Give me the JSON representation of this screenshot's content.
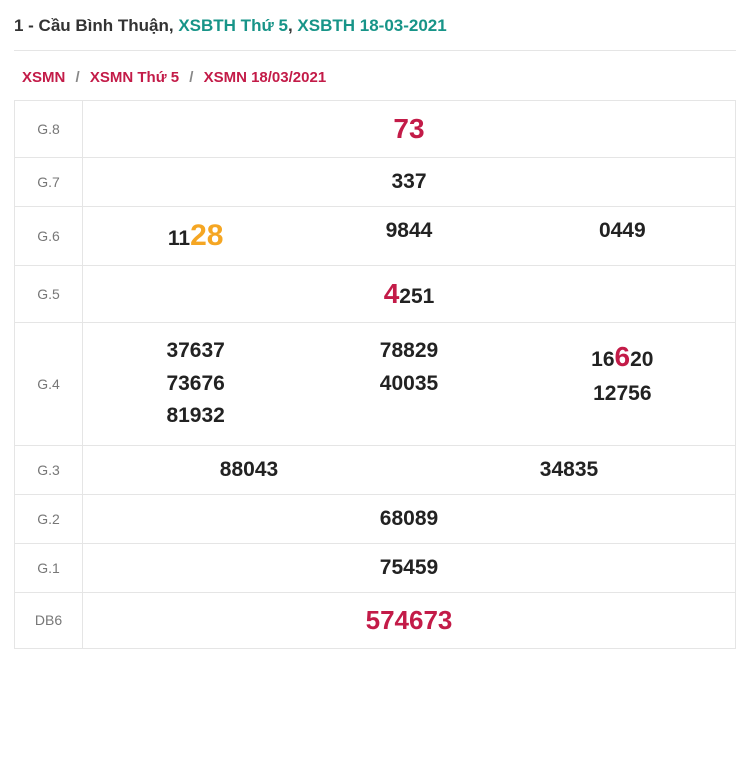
{
  "header": {
    "prefix": "1 - Cầu Bình Thuận, ",
    "link1": "XSBTH Thứ 5",
    "sep": ", ",
    "link2": "XSBTH 18-03-2021"
  },
  "breadcrumb": {
    "c1": "XSMN",
    "c2": "XSMN Thứ 5",
    "c3": "XSMN 18/03/2021",
    "sep": "/"
  },
  "rows": {
    "g8": {
      "label": "G.8",
      "value": "73"
    },
    "g7": {
      "label": "G.7",
      "value": "337"
    },
    "g6": {
      "label": "G.6",
      "col1_pre": "11",
      "col1_hl": "28",
      "col2": "9844",
      "col3": "0449"
    },
    "g5": {
      "label": "G.5",
      "hl": "4",
      "rest": "251"
    },
    "g4": {
      "label": "G.4",
      "col1": [
        "37637",
        "73676",
        "81932"
      ],
      "col2": [
        "78829",
        "40035"
      ],
      "col3_a_pre": "16",
      "col3_a_hl": "6",
      "col3_a_post": "20",
      "col3_b": "12756"
    },
    "g3": {
      "label": "G.3",
      "col1": "88043",
      "col2": "34835"
    },
    "g2": {
      "label": "G.2",
      "value": "68089"
    },
    "g1": {
      "label": "G.1",
      "value": "75459"
    },
    "db": {
      "label": "DB6",
      "value": "574673"
    }
  },
  "colors": {
    "accent_red": "#c31b48",
    "accent_teal": "#179488",
    "accent_orange": "#f5a623",
    "border": "#e5e5e5",
    "muted": "#777777",
    "text": "#222222"
  }
}
